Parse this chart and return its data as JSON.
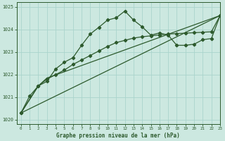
{
  "title": "Graphe pression niveau de la mer (hPa)",
  "bg_color": "#cce8e0",
  "grid_color": "#aad4cc",
  "line_color": "#2d5a2d",
  "xlim": [
    -0.5,
    23
  ],
  "ylim": [
    1019.8,
    1025.2
  ],
  "yticks": [
    1020,
    1021,
    1022,
    1023,
    1024,
    1025
  ],
  "xticks": [
    0,
    1,
    2,
    3,
    4,
    5,
    6,
    7,
    8,
    9,
    10,
    11,
    12,
    13,
    14,
    15,
    16,
    17,
    18,
    19,
    20,
    21,
    22,
    23
  ],
  "series1_x": [
    0,
    1,
    2,
    3,
    4,
    5,
    6,
    7,
    8,
    9,
    10,
    11,
    12,
    13,
    14,
    15,
    16,
    17,
    18,
    19,
    20,
    21,
    22,
    23
  ],
  "series1_y": [
    1020.3,
    1021.05,
    1021.5,
    1021.7,
    1022.25,
    1022.55,
    1022.75,
    1023.3,
    1023.8,
    1024.1,
    1024.42,
    1024.52,
    1024.82,
    1024.42,
    1024.12,
    1023.75,
    1023.85,
    1023.75,
    1023.3,
    1023.3,
    1023.35,
    1023.55,
    1023.6,
    1024.62
  ],
  "series2_x": [
    0,
    2,
    3,
    4,
    5,
    6,
    7,
    8,
    9,
    10,
    11,
    12,
    13,
    14,
    15,
    16,
    17,
    18,
    19,
    20,
    21,
    22,
    23
  ],
  "series2_y": [
    1020.3,
    1021.5,
    1021.8,
    1022.0,
    1022.2,
    1022.45,
    1022.65,
    1022.85,
    1023.05,
    1023.25,
    1023.42,
    1023.52,
    1023.62,
    1023.68,
    1023.72,
    1023.76,
    1023.8,
    1023.82,
    1023.84,
    1023.86,
    1023.88,
    1023.9,
    1024.62
  ],
  "series3_x": [
    0,
    23
  ],
  "series3_y": [
    1020.3,
    1024.62
  ],
  "series4_x": [
    0,
    2,
    3,
    23
  ],
  "series4_y": [
    1020.3,
    1021.5,
    1021.85,
    1024.62
  ]
}
